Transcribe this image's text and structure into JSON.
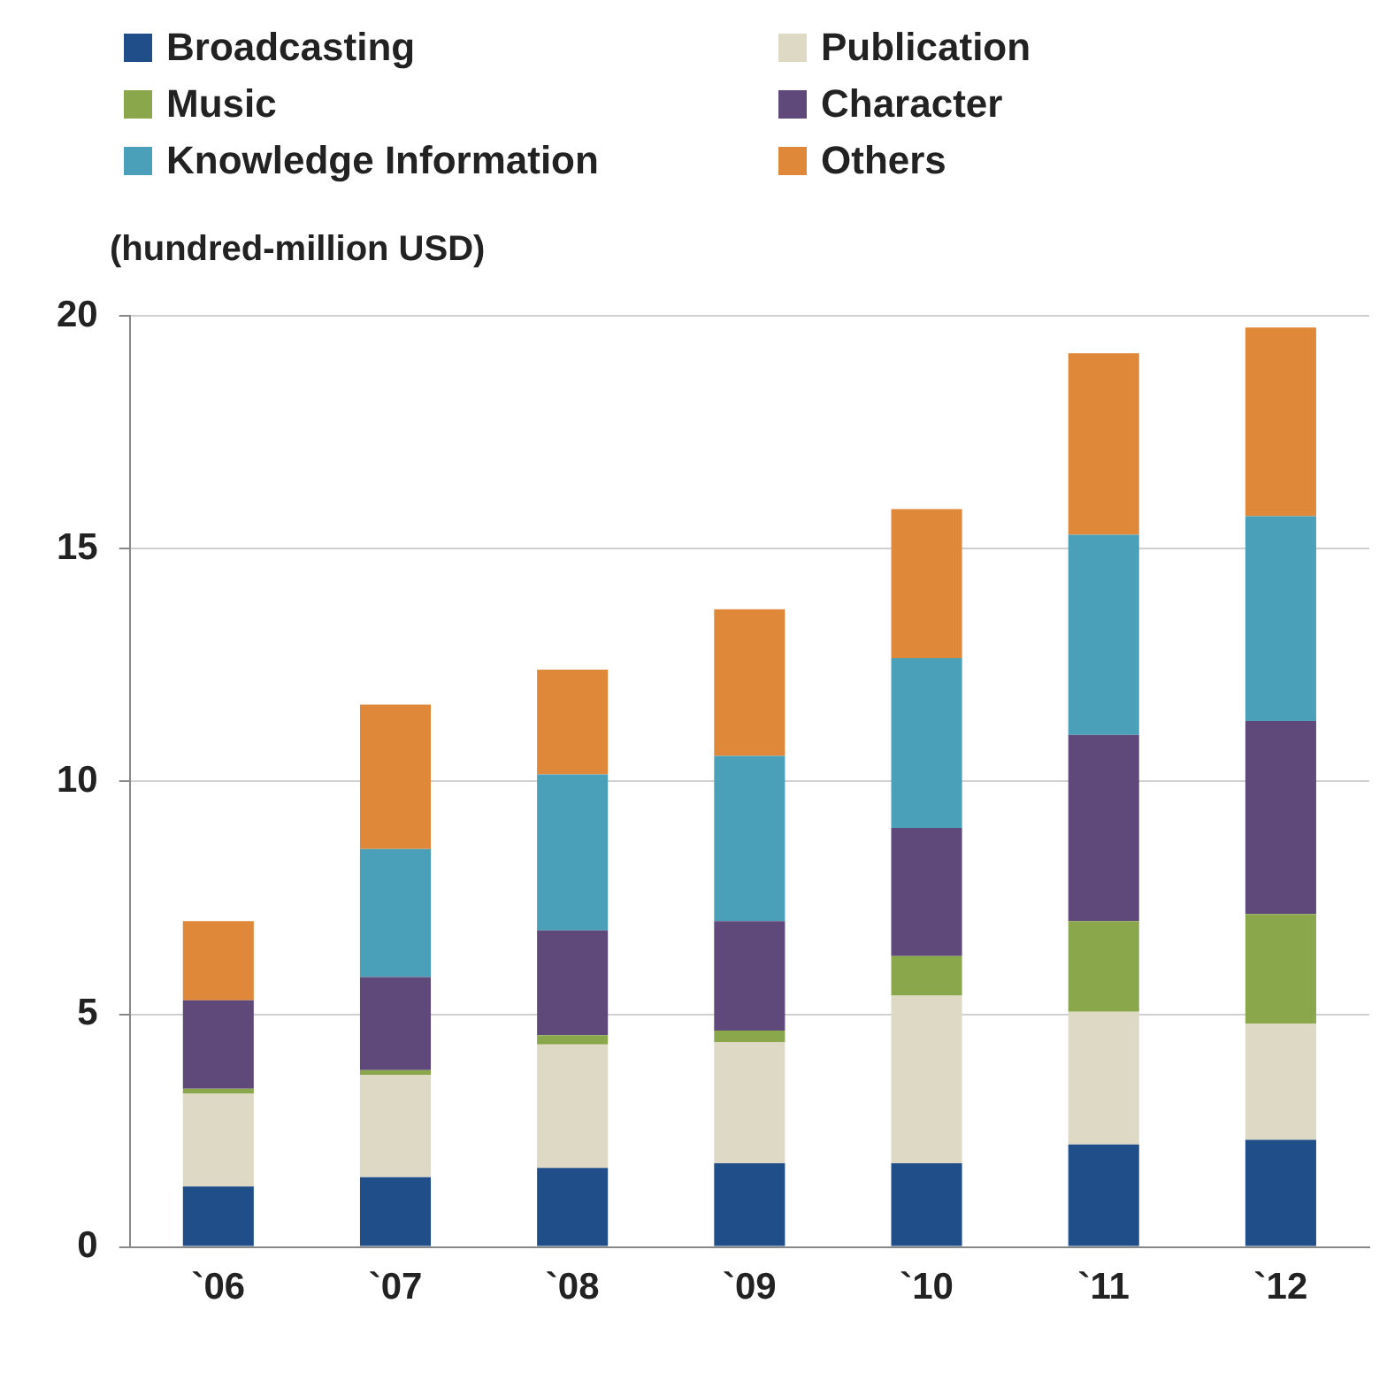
{
  "chart_data": {
    "type": "bar",
    "stacked": true,
    "ylabel": "(hundred-million USD)",
    "categories": [
      "`06",
      "`07",
      "`08",
      "`09",
      "`10",
      "`11",
      "`12"
    ],
    "series": [
      {
        "name": "Broadcasting",
        "color": "#1f4e89",
        "values": [
          1.3,
          1.5,
          1.7,
          1.8,
          1.8,
          2.2,
          2.3
        ]
      },
      {
        "name": "Publication",
        "color": "#ddd9c4",
        "values": [
          2.0,
          2.2,
          2.65,
          2.6,
          3.6,
          2.85,
          2.5
        ]
      },
      {
        "name": "Music",
        "color": "#8aa84b",
        "values": [
          0.1,
          0.1,
          0.2,
          0.25,
          0.85,
          1.95,
          2.35
        ]
      },
      {
        "name": "Character",
        "color": "#5f497a",
        "values": [
          1.9,
          2.0,
          2.25,
          2.35,
          2.75,
          4.0,
          4.15
        ]
      },
      {
        "name": "Knowledge Information",
        "color": "#4aa0b8",
        "values": [
          null,
          2.75,
          3.35,
          3.55,
          3.65,
          4.3,
          4.4
        ]
      },
      {
        "name": "Others",
        "color": "#e0883a",
        "values": [
          1.7,
          3.1,
          2.25,
          3.15,
          3.2,
          3.9,
          4.05
        ]
      }
    ],
    "ylim": [
      0,
      20
    ],
    "yticks": [
      0,
      5,
      10,
      15,
      20
    ],
    "grid": "y",
    "legend": "top"
  }
}
